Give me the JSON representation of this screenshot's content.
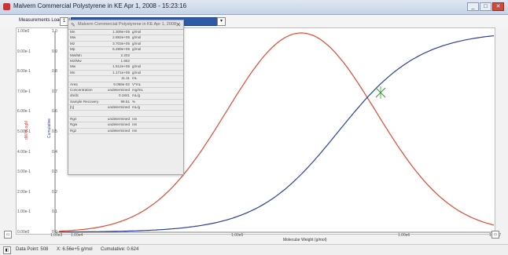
{
  "window": {
    "title": "Malvern Commercial Polystyrene in KE  Apr 1, 2008 - 15:23:16",
    "min": "_",
    "max": "□",
    "close": "✕"
  },
  "toolbar": {
    "measurement_label": "Measurements Loaded 1",
    "spin": "1",
    "dropdown": "▾"
  },
  "panel": {
    "title": "Malvern Commercial Polystyrene in KE  Apr 1, 2008 ...",
    "close": "✕",
    "rows": [
      {
        "k": "Mn",
        "v": "1.309e+05",
        "u": "g/mol"
      },
      {
        "k": "Mw",
        "v": "2.882e+05",
        "u": "g/mol"
      },
      {
        "k": "Mz",
        "v": "3.703e+05",
        "u": "g/mol"
      },
      {
        "k": "Mp",
        "v": "6.289e+05",
        "u": "g/mol"
      },
      {
        "k": "Mw/Mn",
        "v": "2.202",
        "u": ""
      },
      {
        "k": "Mz/Mw",
        "v": "1.652",
        "u": ""
      },
      {
        "k": "Mw",
        "v": "1.512e+05",
        "u": "g/mol"
      },
      {
        "k": "Mn",
        "v": "1.171e+05",
        "u": "g/mol"
      },
      {
        "k": "",
        "v": "11.11",
        "u": "mL"
      },
      {
        "k": "Area",
        "v": "9.056e-02",
        "u": "V*mL"
      },
      {
        "k": "Concentration",
        "v": "undetermined",
        "u": "mg/mL"
      },
      {
        "k": "dn/dc",
        "v": "0.1841",
        "u": "mL/g"
      },
      {
        "k": "Sample Recovery",
        "v": "99.51",
        "u": "%"
      },
      {
        "k": "[η]",
        "v": "undetermined",
        "u": "mL/g"
      },
      {
        "k": "",
        "v": "",
        "u": ""
      },
      {
        "k": "Rgn",
        "v": "undetermined",
        "u": "nm"
      },
      {
        "k": "Rgw",
        "v": "undetermined",
        "u": "nm"
      },
      {
        "k": "Rgz",
        "v": "undetermined",
        "u": "nm"
      }
    ]
  },
  "left_axis": {
    "label": "dW/dLogM",
    "ticks": [
      "1.00e0",
      "9.00e-1",
      "8.00e-1",
      "7.00e-1",
      "6.00e-1",
      "5.00e-1",
      "4.00e-1",
      "3.00e-1",
      "2.00e-1",
      "1.00e-1",
      "0.00e0"
    ]
  },
  "right_axis": {
    "label": "Cumulative",
    "ticks": [
      "1.0",
      "0.9",
      "0.8",
      "0.7",
      "0.6",
      "0.5",
      "0.4",
      "0.3",
      "0.2",
      "0.1",
      "0.0"
    ]
  },
  "x_axis": {
    "label": "Molecular Weight (g/mol)",
    "ticks": [
      "1.00e3",
      "1.00e4",
      "1.00e5",
      "1.00e6",
      "1.00e7"
    ]
  },
  "status": {
    "data_point": "Data Point: 508",
    "x": "X: 6.56e+5 g/mol",
    "y": "Cumulative: 0.624"
  },
  "colors": {
    "distribution": "#e04a32",
    "cumulative": "#2c3f9e",
    "marker": "#3a9a3a"
  },
  "icons": {
    "app": "app-icon",
    "panel": "pencil-icon"
  }
}
